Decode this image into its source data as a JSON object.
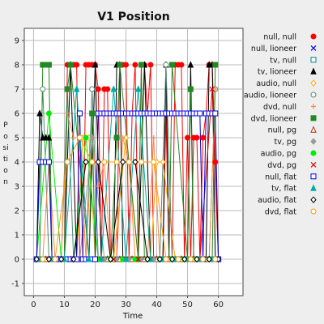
{
  "chart_data": {
    "type": "line",
    "title": "V1 Position",
    "xlabel": "Time",
    "ylabel": "Position",
    "xlim": [
      -3,
      68
    ],
    "ylim": [
      -1.5,
      9.5
    ],
    "xticks": [
      0,
      10,
      20,
      30,
      40,
      50,
      60
    ],
    "yticks": [
      -1,
      0,
      1,
      2,
      3,
      4,
      5,
      6,
      7,
      8,
      9
    ],
    "grid": true,
    "legend_position": "right",
    "series": [
      {
        "name": "null, null",
        "color": "#ff0000",
        "marker": "circle-filled",
        "x": [
          1,
          3,
          5,
          7,
          9,
          10,
          11,
          12,
          13,
          14,
          15,
          16,
          17,
          18,
          19,
          20,
          21,
          22,
          23,
          24,
          25,
          26,
          27,
          28,
          29,
          30,
          31,
          32,
          33,
          34,
          35,
          36,
          37,
          38,
          39,
          40,
          41,
          42,
          43,
          44,
          45,
          46,
          47,
          48,
          49,
          50,
          51,
          52,
          53,
          54,
          55,
          56,
          57,
          58,
          59,
          60
        ],
        "y": [
          0,
          0,
          0,
          0,
          0,
          0,
          8,
          8,
          8,
          8,
          0,
          0,
          8,
          8,
          8,
          8,
          7,
          0,
          7,
          7,
          0,
          0,
          0,
          8,
          8,
          8,
          0,
          6,
          8,
          0,
          8,
          8,
          6,
          8,
          0,
          0,
          0,
          0,
          6,
          0,
          0,
          8,
          8,
          8,
          0,
          5,
          0,
          5,
          5,
          0,
          5,
          6,
          8,
          8,
          4,
          0
        ]
      },
      {
        "name": "null, lioneer",
        "color": "#0000ff",
        "marker": "x",
        "x": [
          1,
          3,
          5,
          7,
          9,
          11,
          13,
          15,
          17,
          19,
          21,
          23,
          25,
          27,
          29,
          31,
          33,
          35,
          37,
          39,
          41,
          43,
          45,
          47,
          49,
          51,
          53,
          55,
          57,
          59,
          60
        ],
        "y": [
          0,
          0,
          0,
          0,
          0,
          0,
          0,
          0,
          0,
          0,
          0,
          0,
          0,
          0,
          0,
          0,
          0,
          0,
          0,
          0,
          0,
          0,
          0,
          0,
          0,
          0,
          0,
          0,
          0,
          0,
          0
        ]
      },
      {
        "name": "tv, null",
        "color": "#008888",
        "marker": "square",
        "x": [
          2,
          4,
          6,
          8,
          10,
          12,
          14,
          16,
          18,
          20,
          22,
          24,
          26,
          28,
          30,
          32,
          34,
          36,
          38,
          40,
          42,
          44,
          46,
          48,
          50,
          52,
          54,
          56,
          58,
          60
        ],
        "y": [
          0,
          0,
          0,
          0,
          0,
          0,
          0,
          0,
          0,
          0,
          0,
          0,
          0,
          0,
          0,
          0,
          0,
          0,
          0,
          0,
          0,
          0,
          0,
          0,
          0,
          0,
          0,
          0,
          0,
          0
        ]
      },
      {
        "name": "tv, lioneer",
        "color": "#000000",
        "marker": "triangle-filled",
        "x": [
          1,
          2,
          3,
          4,
          5,
          6,
          8,
          10,
          12,
          14,
          16,
          18,
          20,
          22,
          24,
          26,
          27,
          28,
          29,
          30,
          32,
          34,
          36,
          38,
          40,
          42,
          43,
          44,
          46,
          48,
          50,
          51,
          52,
          54,
          56,
          57,
          58,
          59,
          60
        ],
        "y": [
          0,
          6,
          5,
          5,
          5,
          0,
          0,
          0,
          8,
          0,
          0,
          0,
          8,
          0,
          0,
          0,
          8,
          8,
          0,
          0,
          0,
          0,
          8,
          0,
          0,
          0,
          8,
          0,
          0,
          0,
          0,
          8,
          0,
          0,
          0,
          8,
          8,
          0,
          0
        ]
      },
      {
        "name": "audio, null",
        "color": "#ffaa00",
        "marker": "diamond",
        "x": [
          2,
          6,
          10,
          14,
          16,
          18,
          20,
          22,
          26,
          30,
          34,
          38,
          40,
          42,
          46,
          50,
          54,
          58
        ],
        "y": [
          0,
          0,
          0,
          0,
          5,
          5,
          0,
          0,
          0,
          5,
          0,
          0,
          4,
          4,
          0,
          0,
          0,
          0
        ]
      },
      {
        "name": "audio, lioneer",
        "color": "#558877",
        "marker": "circle",
        "x": [
          1,
          3,
          5,
          7,
          9,
          11,
          13,
          15,
          17,
          19,
          21,
          23,
          25,
          27,
          29,
          31,
          33,
          35,
          37,
          39,
          41,
          43,
          45,
          47,
          49,
          51,
          53,
          55,
          57,
          59
        ],
        "y": [
          0,
          7,
          0,
          0,
          0,
          7,
          0,
          0,
          0,
          7,
          0,
          0,
          0,
          0,
          0,
          0,
          0,
          0,
          0,
          0,
          0,
          8,
          0,
          0,
          0,
          0,
          0,
          0,
          0,
          7
        ]
      },
      {
        "name": "dvd, null",
        "color": "#ff8844",
        "marker": "plus",
        "x": [
          3,
          5,
          7,
          9,
          11,
          13,
          15,
          17,
          19,
          21,
          23,
          25,
          27,
          29,
          31,
          33,
          35,
          37,
          39,
          41,
          43,
          45,
          47,
          49,
          51,
          53,
          55,
          57,
          59
        ],
        "y": [
          0,
          4,
          0,
          0,
          6,
          5,
          5,
          0,
          5,
          3,
          4,
          0,
          0,
          5,
          4,
          0,
          0,
          0,
          5,
          0,
          0,
          0,
          0,
          0,
          0,
          0,
          0,
          0,
          7
        ]
      },
      {
        "name": "dvd, lioneer",
        "color": "#228822",
        "marker": "square-filled",
        "x": [
          2,
          3,
          4,
          5,
          6,
          10,
          11,
          12,
          18,
          19,
          20,
          25,
          27,
          28,
          34,
          35,
          36,
          44,
          45,
          50,
          51,
          52,
          58,
          59
        ],
        "y": [
          0,
          8,
          8,
          8,
          0,
          0,
          7,
          8,
          0,
          6,
          0,
          0,
          5,
          8,
          0,
          8,
          0,
          0,
          8,
          0,
          7,
          0,
          0,
          8
        ]
      },
      {
        "name": "null, pg",
        "color": "#aa3300",
        "marker": "triangle",
        "x": [
          4,
          8,
          12,
          16,
          20,
          24,
          28,
          32,
          36,
          40,
          44,
          48,
          52,
          56,
          60
        ],
        "y": [
          0,
          0,
          0,
          0,
          0,
          0,
          0,
          0,
          0,
          0,
          0,
          0,
          0,
          0,
          0
        ]
      },
      {
        "name": "tv, pg",
        "color": "#999999",
        "marker": "diamond-filled",
        "x": [
          3,
          7,
          11,
          15,
          19,
          23,
          27,
          31,
          35,
          39,
          43,
          47,
          51,
          55,
          59
        ],
        "y": [
          0,
          0,
          0,
          0,
          5,
          0,
          0,
          0,
          0,
          0,
          0,
          0,
          0,
          0,
          0
        ]
      },
      {
        "name": "audio, pg",
        "color": "#00ee00",
        "marker": "circle-filled",
        "x": [
          1,
          5,
          9,
          13,
          17,
          21,
          25,
          29,
          33,
          37,
          41,
          45,
          49,
          53,
          57
        ],
        "y": [
          0,
          6,
          0,
          0,
          5,
          0,
          0,
          0,
          0,
          0,
          0,
          0,
          0,
          0,
          0
        ]
      },
      {
        "name": "dvd, pg",
        "color": "#dd0000",
        "marker": "x",
        "x": [
          2,
          6,
          10,
          14,
          18,
          22,
          26,
          30,
          34,
          38,
          42,
          46,
          50,
          54,
          58,
          60
        ],
        "y": [
          0,
          0,
          0,
          0,
          0,
          0,
          0,
          0,
          0,
          0,
          0,
          0,
          0,
          0,
          7,
          0
        ]
      },
      {
        "name": "null, flat",
        "color": "#0000dd",
        "marker": "square",
        "x": [
          1,
          2,
          3,
          4,
          5,
          6,
          7,
          8,
          9,
          10,
          11,
          12,
          13,
          14,
          15,
          16,
          17,
          18,
          19,
          20,
          21,
          22,
          23,
          24,
          25,
          26,
          27,
          28,
          29,
          30,
          31,
          32,
          33,
          34,
          35,
          36,
          37,
          38,
          39,
          40,
          41,
          42,
          43,
          44,
          45,
          46,
          47,
          48,
          49,
          50,
          51,
          52,
          53,
          54,
          55,
          56,
          57,
          58,
          59,
          60
        ],
        "y": [
          0,
          4,
          4,
          4,
          4,
          0,
          0,
          0,
          0,
          0,
          0,
          0,
          0,
          0,
          6,
          0,
          0,
          0,
          0,
          0,
          6,
          6,
          6,
          6,
          6,
          6,
          6,
          6,
          6,
          6,
          6,
          6,
          6,
          6,
          6,
          6,
          6,
          6,
          6,
          6,
          6,
          6,
          6,
          6,
          6,
          6,
          6,
          6,
          6,
          6,
          6,
          6,
          6,
          6,
          0,
          6,
          6,
          6,
          6,
          0
        ]
      },
      {
        "name": "tv, flat",
        "color": "#00aaaa",
        "marker": "triangle-filled",
        "x": [
          2,
          6,
          10,
          14,
          18,
          22,
          26,
          30,
          34,
          38,
          42,
          46,
          50,
          54,
          58
        ],
        "y": [
          0,
          0,
          0,
          7,
          0,
          0,
          7,
          0,
          7,
          0,
          0,
          0,
          0,
          0,
          0
        ]
      },
      {
        "name": "audio, flat",
        "color": "#000000",
        "marker": "diamond",
        "x": [
          1,
          5,
          9,
          13,
          17,
          21,
          25,
          29,
          33,
          37,
          41,
          45,
          49,
          53,
          57,
          60
        ],
        "y": [
          0,
          0,
          0,
          0,
          4,
          4,
          0,
          4,
          4,
          0,
          0,
          0,
          0,
          0,
          0,
          0
        ]
      },
      {
        "name": "dvd, flat",
        "color": "#ff9900",
        "marker": "circle",
        "x": [
          3,
          7,
          11,
          15,
          19,
          23,
          27,
          31,
          35,
          39,
          43,
          47,
          51,
          55,
          59
        ],
        "y": [
          0,
          0,
          4,
          5,
          4,
          4,
          4,
          4,
          4,
          4,
          0,
          0,
          0,
          0,
          0
        ]
      }
    ]
  }
}
